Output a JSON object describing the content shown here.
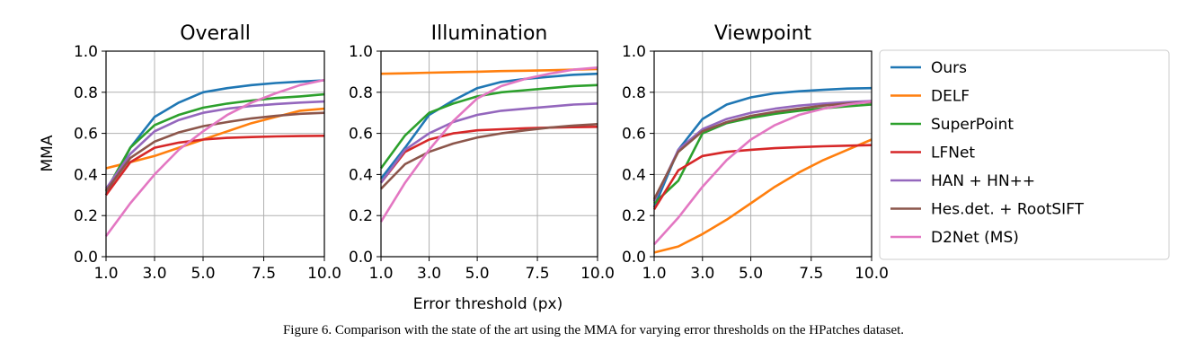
{
  "figure": {
    "caption": "Figure 6. Comparison with the state of the art using the MMA for varying error thresholds on the HPatches dataset.",
    "shared_xlabel": "Error threshold (px)",
    "shared_ylabel": "MMA"
  },
  "chart_data": {
    "type": "line",
    "x": [
      1,
      2,
      3,
      4,
      5,
      6,
      7,
      8,
      9,
      10
    ],
    "xticks": [
      "1.0",
      "3.0",
      "5.0",
      "7.5",
      "10.0"
    ],
    "xtick_values": [
      1,
      3,
      5,
      7.5,
      10
    ],
    "yticks": [
      "0.0",
      "0.2",
      "0.4",
      "0.6",
      "0.8",
      "1.0"
    ],
    "xlim": [
      1,
      10
    ],
    "ylim": [
      0,
      1
    ],
    "grid": true,
    "legend_position": "right",
    "series_meta": [
      {
        "name": "Ours",
        "color": "#1f77b4"
      },
      {
        "name": "DELF",
        "color": "#ff7f0e"
      },
      {
        "name": "SuperPoint",
        "color": "#2ca02c"
      },
      {
        "name": "LFNet",
        "color": "#d62728"
      },
      {
        "name": "HAN + HN++",
        "color": "#9467bd"
      },
      {
        "name": "Hes.det. + RootSIFT",
        "color": "#8c564b"
      },
      {
        "name": "D2Net (MS)",
        "color": "#e377c2"
      }
    ],
    "panels": [
      {
        "title": "Overall",
        "series": [
          {
            "name": "Ours",
            "values": [
              0.3,
              0.53,
              0.68,
              0.75,
              0.8,
              0.82,
              0.835,
              0.845,
              0.852,
              0.858
            ]
          },
          {
            "name": "DELF",
            "values": [
              0.43,
              0.46,
              0.49,
              0.53,
              0.57,
              0.61,
              0.65,
              0.68,
              0.71,
              0.72
            ]
          },
          {
            "name": "SuperPoint",
            "values": [
              0.32,
              0.53,
              0.64,
              0.69,
              0.725,
              0.745,
              0.76,
              0.772,
              0.78,
              0.79
            ]
          },
          {
            "name": "LFNet",
            "values": [
              0.3,
              0.46,
              0.53,
              0.555,
              0.57,
              0.578,
              0.582,
              0.585,
              0.587,
              0.588
            ]
          },
          {
            "name": "HAN + HN++",
            "values": [
              0.33,
              0.5,
              0.61,
              0.665,
              0.7,
              0.72,
              0.733,
              0.743,
              0.75,
              0.755
            ]
          },
          {
            "name": "Hes.det. + RootSIFT",
            "values": [
              0.32,
              0.48,
              0.56,
              0.605,
              0.635,
              0.655,
              0.673,
              0.685,
              0.695,
              0.7
            ]
          },
          {
            "name": "D2Net (MS)",
            "values": [
              0.1,
              0.26,
              0.4,
              0.52,
              0.61,
              0.69,
              0.75,
              0.795,
              0.835,
              0.86
            ]
          }
        ]
      },
      {
        "title": "Illumination",
        "series": [
          {
            "name": "Ours",
            "values": [
              0.38,
              0.53,
              0.69,
              0.76,
              0.82,
              0.85,
              0.865,
              0.875,
              0.885,
              0.89
            ]
          },
          {
            "name": "DELF",
            "values": [
              0.89,
              0.892,
              0.895,
              0.898,
              0.9,
              0.903,
              0.905,
              0.907,
              0.91,
              0.913
            ]
          },
          {
            "name": "SuperPoint",
            "values": [
              0.43,
              0.59,
              0.7,
              0.745,
              0.78,
              0.8,
              0.81,
              0.82,
              0.83,
              0.835
            ]
          },
          {
            "name": "LFNet",
            "values": [
              0.36,
              0.51,
              0.57,
              0.6,
              0.615,
              0.62,
              0.625,
              0.628,
              0.63,
              0.632
            ]
          },
          {
            "name": "HAN + HN++",
            "values": [
              0.36,
              0.52,
              0.6,
              0.655,
              0.69,
              0.71,
              0.72,
              0.73,
              0.74,
              0.745
            ]
          },
          {
            "name": "Hes.det. + RootSIFT",
            "values": [
              0.33,
              0.45,
              0.51,
              0.55,
              0.58,
              0.6,
              0.615,
              0.628,
              0.638,
              0.645
            ]
          },
          {
            "name": "D2Net (MS)",
            "values": [
              0.17,
              0.36,
              0.52,
              0.66,
              0.77,
              0.83,
              0.865,
              0.89,
              0.91,
              0.92
            ]
          }
        ]
      },
      {
        "title": "Viewpoint",
        "series": [
          {
            "name": "Ours",
            "values": [
              0.24,
              0.52,
              0.67,
              0.74,
              0.775,
              0.795,
              0.805,
              0.812,
              0.818,
              0.82
            ]
          },
          {
            "name": "DELF",
            "values": [
              0.02,
              0.05,
              0.11,
              0.18,
              0.26,
              0.34,
              0.41,
              0.47,
              0.52,
              0.57
            ]
          },
          {
            "name": "SuperPoint",
            "values": [
              0.26,
              0.37,
              0.6,
              0.65,
              0.675,
              0.695,
              0.71,
              0.722,
              0.732,
              0.74
            ]
          },
          {
            "name": "LFNet",
            "values": [
              0.23,
              0.42,
              0.49,
              0.51,
              0.52,
              0.528,
              0.533,
              0.537,
              0.54,
              0.543
            ]
          },
          {
            "name": "HAN + HN++",
            "values": [
              0.27,
              0.52,
              0.62,
              0.67,
              0.7,
              0.72,
              0.735,
              0.745,
              0.752,
              0.757
            ]
          },
          {
            "name": "Hes.det. + RootSIFT",
            "values": [
              0.28,
              0.51,
              0.61,
              0.655,
              0.685,
              0.705,
              0.72,
              0.735,
              0.745,
              0.752
            ]
          },
          {
            "name": "D2Net (MS)",
            "values": [
              0.06,
              0.19,
              0.34,
              0.47,
              0.57,
              0.64,
              0.69,
              0.72,
              0.74,
              0.755
            ]
          }
        ]
      }
    ]
  }
}
